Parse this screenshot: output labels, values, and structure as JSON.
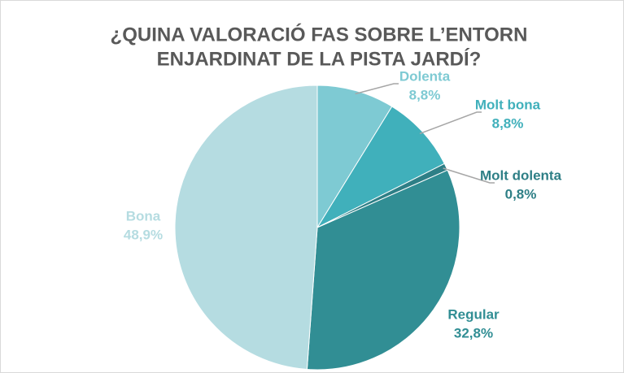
{
  "chart_data": {
    "type": "pie",
    "title": [
      "¿QUINA VALORACIÓ FAS SOBRE L’ENTORN",
      "ENJARDINAT DE LA PISTA JARDÍ?"
    ],
    "categories": [
      "Dolenta",
      "Molt bona",
      "Molt dolenta",
      "Regular",
      "Bona"
    ],
    "values": [
      8.8,
      8.8,
      0.8,
      32.8,
      48.9
    ],
    "value_labels": [
      "8,8%",
      "8,8%",
      "0,8%",
      "32,8%",
      "48,9%"
    ],
    "colors": [
      "#7ecad3",
      "#40b0bb",
      "#2e7f86",
      "#318e94",
      "#b5dce1"
    ]
  }
}
